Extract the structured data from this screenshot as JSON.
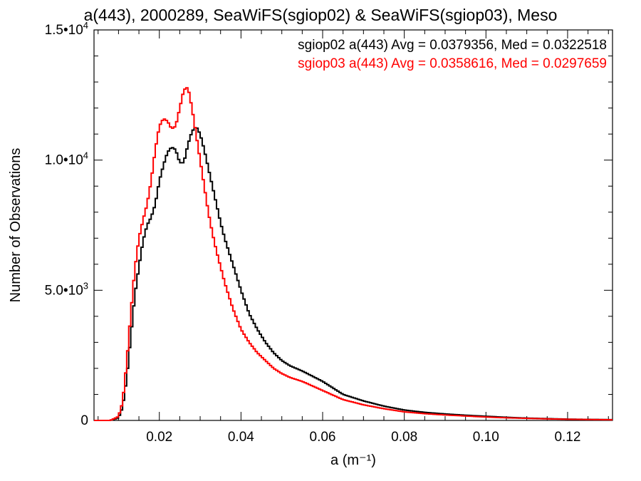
{
  "chart_data": {
    "type": "line",
    "title": "a(443), 2000289, SeaWiFS(sgiop02) & SeaWiFS(sgiop03), Meso",
    "xlabel": "a (m⁻¹)",
    "ylabel": "Number of Observations",
    "xlim": [
      0.004,
      0.131
    ],
    "ylim": [
      0,
      15000
    ],
    "x_ticks": [
      {
        "value": 0.02,
        "label": "0.02"
      },
      {
        "value": 0.04,
        "label": "0.04"
      },
      {
        "value": 0.06,
        "label": "0.06"
      },
      {
        "value": 0.08,
        "label": "0.08"
      },
      {
        "value": 0.1,
        "label": "0.10"
      },
      {
        "value": 0.12,
        "label": "0.12"
      }
    ],
    "y_ticks": [
      {
        "value": 0,
        "mantissa": "0",
        "exponent": ""
      },
      {
        "value": 5000,
        "mantissa": "5.0•",
        "exponent": "3"
      },
      {
        "value": 10000,
        "mantissa": "1.0•",
        "exponent": "4"
      },
      {
        "value": 15000,
        "mantissa": "1.5•",
        "exponent": "4"
      }
    ],
    "grid": false,
    "legend_position": "top-right",
    "series": [
      {
        "legend": "sgiop02 a(443) Avg = 0.0379356, Med = 0.0322518",
        "color": "#000000",
        "x": [
          0.004,
          0.008,
          0.01,
          0.011,
          0.012,
          0.013,
          0.014,
          0.015,
          0.016,
          0.017,
          0.018,
          0.019,
          0.02,
          0.021,
          0.022,
          0.023,
          0.024,
          0.025,
          0.026,
          0.027,
          0.028,
          0.029,
          0.03,
          0.031,
          0.032,
          0.033,
          0.034,
          0.035,
          0.036,
          0.038,
          0.04,
          0.042,
          0.044,
          0.046,
          0.048,
          0.05,
          0.052,
          0.055,
          0.06,
          0.065,
          0.07,
          0.075,
          0.08,
          0.085,
          0.09,
          0.095,
          0.1,
          0.105,
          0.11,
          0.115,
          0.12,
          0.125,
          0.131
        ],
        "values": [
          0,
          0,
          100,
          500,
          1600,
          3200,
          4800,
          5900,
          6900,
          7500,
          7800,
          8300,
          9200,
          9800,
          10300,
          10500,
          10400,
          9900,
          9900,
          10600,
          11100,
          11300,
          11000,
          10400,
          9700,
          9000,
          8300,
          7600,
          7000,
          6000,
          5000,
          4100,
          3500,
          3000,
          2600,
          2300,
          2100,
          1900,
          1500,
          1000,
          750,
          550,
          400,
          310,
          250,
          200,
          160,
          120,
          90,
          70,
          50,
          40,
          30
        ]
      },
      {
        "legend": "sgiop03 a(443) Avg = 0.0358616, Med = 0.0297659",
        "color": "#ff0000",
        "x": [
          0.004,
          0.008,
          0.01,
          0.011,
          0.012,
          0.013,
          0.014,
          0.015,
          0.016,
          0.017,
          0.018,
          0.019,
          0.02,
          0.021,
          0.022,
          0.023,
          0.024,
          0.025,
          0.026,
          0.027,
          0.028,
          0.029,
          0.03,
          0.031,
          0.032,
          0.033,
          0.034,
          0.035,
          0.036,
          0.038,
          0.04,
          0.042,
          0.044,
          0.046,
          0.048,
          0.05,
          0.052,
          0.055,
          0.06,
          0.065,
          0.07,
          0.075,
          0.08,
          0.085,
          0.09,
          0.095,
          0.1,
          0.105,
          0.11,
          0.115,
          0.12,
          0.125,
          0.131
        ],
        "values": [
          0,
          0,
          150,
          700,
          2200,
          4100,
          5800,
          7000,
          7700,
          8300,
          9200,
          10400,
          11300,
          11600,
          11500,
          11200,
          11300,
          12000,
          12700,
          12800,
          12000,
          11000,
          10000,
          9000,
          8000,
          7200,
          6500,
          5900,
          5300,
          4300,
          3500,
          3000,
          2600,
          2300,
          2000,
          1800,
          1650,
          1500,
          1150,
          800,
          600,
          450,
          330,
          260,
          210,
          170,
          130,
          100,
          80,
          60,
          45,
          35,
          25
        ]
      }
    ]
  }
}
